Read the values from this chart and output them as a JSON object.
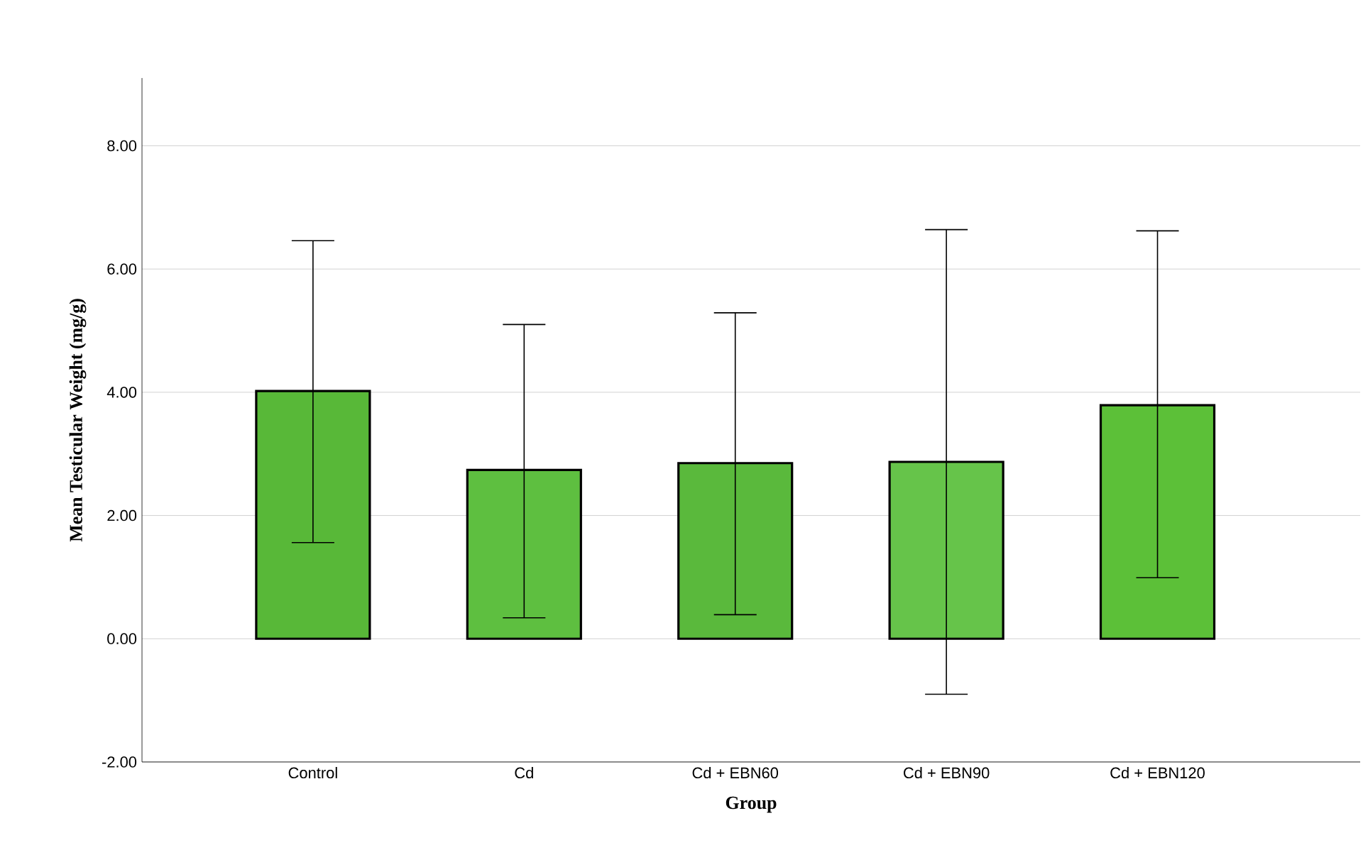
{
  "chart_data": {
    "type": "bar",
    "xlabel": "Group",
    "ylabel": "Mean Testicular Weight (mg/g)",
    "categories": [
      "Control",
      "Cd",
      "Cd + EBN60",
      "Cd + EBN90",
      "Cd + EBN120"
    ],
    "values": [
      4.02,
      2.74,
      2.85,
      2.87,
      3.79
    ],
    "errors": [
      [
        1.56,
        6.46
      ],
      [
        0.34,
        5.1
      ],
      [
        0.39,
        5.29
      ],
      [
        -0.9,
        6.64
      ],
      [
        0.99,
        6.62
      ]
    ],
    "colors": [
      "#58b838",
      "#5ebf40",
      "#5ab93c",
      "#66c44a",
      "#5cc038"
    ],
    "ylim": [
      -2,
      9.1
    ],
    "yticks": [
      {
        "value": -2,
        "label": "-2.00"
      },
      {
        "value": 0,
        "label": "0.00"
      },
      {
        "value": 2,
        "label": "2.00"
      },
      {
        "value": 4,
        "label": "4.00"
      },
      {
        "value": 6,
        "label": "6.00"
      },
      {
        "value": 8,
        "label": "8.00"
      }
    ],
    "grid": "y"
  }
}
